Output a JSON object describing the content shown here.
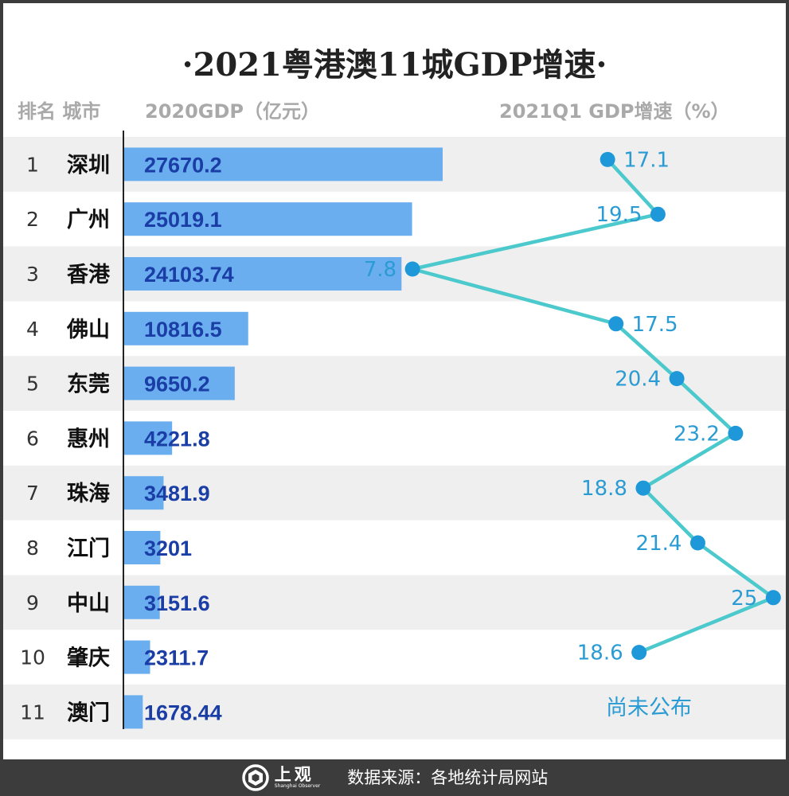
{
  "title": "·2021粤港澳11城GDP增速·",
  "headers": {
    "rank_city": "排名 城市",
    "gdp": "2020GDP（亿元）",
    "growth": "2021Q1 GDP增速（%）"
  },
  "colors": {
    "bar": "#6aaef0",
    "gdp_label": "#1a3ea6",
    "line": "#4cc9cc",
    "point": "#1e98d8",
    "stripe": "#efefef"
  },
  "chart_data": {
    "type": "bar",
    "orientation": "horizontal",
    "categories": [
      "深圳",
      "广州",
      "香港",
      "佛山",
      "东莞",
      "惠州",
      "珠海",
      "江门",
      "中山",
      "肇庆",
      "澳门"
    ],
    "ranks": [
      "1",
      "2",
      "3",
      "4",
      "5",
      "6",
      "7",
      "8",
      "9",
      "10",
      "11"
    ],
    "series": [
      {
        "name": "2020GDP（亿元）",
        "type": "bar",
        "values": [
          27670.2,
          25019.1,
          24103.74,
          10816.5,
          9650.2,
          4221.8,
          3481.9,
          3201,
          3151.6,
          2311.7,
          1678.44
        ],
        "labels": [
          "27670.2",
          "25019.1",
          "24103.74",
          "10816.5",
          "9650.2",
          "4221.8",
          "3481.9",
          "3201",
          "3151.6",
          "2311.7",
          "1678.44"
        ]
      },
      {
        "name": "2021Q1 GDP增速（%）",
        "type": "line",
        "values": [
          17.1,
          19.5,
          7.8,
          17.5,
          20.4,
          23.2,
          18.8,
          21.4,
          25,
          18.6,
          null
        ],
        "labels": [
          "17.1",
          "19.5",
          "7.8",
          "17.5",
          "20.4",
          "23.2",
          "18.8",
          "21.4",
          "25",
          "18.6",
          ""
        ]
      }
    ],
    "grid": false,
    "legend": "none"
  },
  "pending_note": "尚未公布",
  "footer": {
    "logo_cn": "上观",
    "logo_en": "Shanghai Observer",
    "source": "数据来源：各地统计局网站"
  }
}
